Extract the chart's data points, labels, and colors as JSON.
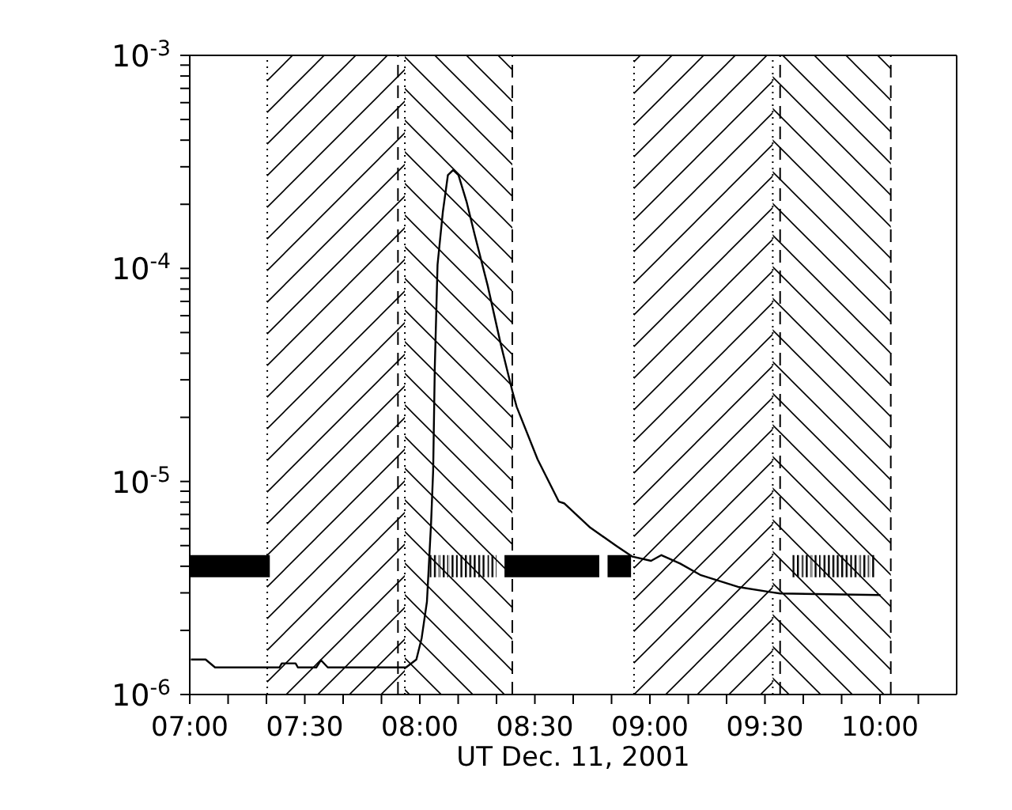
{
  "chart_data": {
    "type": "line",
    "xlabel": "UT Dec. 11, 2001",
    "xlim": [
      7,
      10.3333
    ],
    "xticks": [
      {
        "value": 7,
        "label": "07:00"
      },
      {
        "value": 7.1667,
        "label": null
      },
      {
        "value": 7.3333,
        "label": null
      },
      {
        "value": 7.5,
        "label": "07:30"
      },
      {
        "value": 7.6667,
        "label": null
      },
      {
        "value": 7.8333,
        "label": null
      },
      {
        "value": 8,
        "label": "08:00"
      },
      {
        "value": 8.1667,
        "label": null
      },
      {
        "value": 8.3333,
        "label": null
      },
      {
        "value": 8.5,
        "label": "08:30"
      },
      {
        "value": 8.6667,
        "label": null
      },
      {
        "value": 8.8333,
        "label": null
      },
      {
        "value": 9,
        "label": "09:00"
      },
      {
        "value": 9.1667,
        "label": null
      },
      {
        "value": 9.3333,
        "label": null
      },
      {
        "value": 9.5,
        "label": "09:30"
      },
      {
        "value": 9.6667,
        "label": null
      },
      {
        "value": 9.8333,
        "label": null
      },
      {
        "value": 10,
        "label": "10:00"
      },
      {
        "value": 10.1667,
        "label": null
      }
    ],
    "ylim": [
      1e-06,
      0.001
    ],
    "log": true,
    "yticks": [
      {
        "value": 1e-06,
        "label": "10$^{-6}$"
      },
      {
        "value": 2e-06,
        "label": null
      },
      {
        "value": 3e-06,
        "label": null
      },
      {
        "value": 4e-06,
        "label": null
      },
      {
        "value": 5e-06,
        "label": null
      },
      {
        "value": 6e-06,
        "label": null
      },
      {
        "value": 7e-06,
        "label": null
      },
      {
        "value": 8e-06,
        "label": null
      },
      {
        "value": 9e-06,
        "label": null
      },
      {
        "value": 1e-05,
        "label": "10$^{-5}$"
      },
      {
        "value": 2e-05,
        "label": null
      },
      {
        "value": 3e-05,
        "label": null
      },
      {
        "value": 4e-05,
        "label": null
      },
      {
        "value": 5e-05,
        "label": null
      },
      {
        "value": 6e-05,
        "label": null
      },
      {
        "value": 7e-05,
        "label": null
      },
      {
        "value": 8e-05,
        "label": null
      },
      {
        "value": 9e-05,
        "label": null
      },
      {
        "value": 0.0001,
        "label": "10$^{-4}$"
      },
      {
        "value": 0.0002,
        "label": null
      },
      {
        "value": 0.0003,
        "label": null
      },
      {
        "value": 0.0004,
        "label": null
      },
      {
        "value": 0.0005,
        "label": null
      },
      {
        "value": 0.0006,
        "label": null
      },
      {
        "value": 0.0007,
        "label": null
      },
      {
        "value": 0.0008,
        "label": null
      },
      {
        "value": 0.0009,
        "label": null
      },
      {
        "value": 0.001,
        "label": "10$^{-3}$"
      }
    ],
    "marker": "none",
    "series": [
      {
        "color": "#000000",
        "x": [
          7.005,
          7.069,
          7.11,
          7.39,
          7.4,
          7.46,
          7.47,
          7.55,
          7.57,
          7.6,
          7.94,
          7.985,
          8.008,
          8.031,
          8.049,
          8.058,
          8.065,
          8.077,
          8.1,
          8.122,
          8.145,
          8.168,
          8.203,
          8.237,
          8.295,
          8.352,
          8.402,
          8.421,
          8.512,
          8.604,
          8.627,
          8.741,
          8.856,
          8.924,
          9.005,
          9.05,
          9.131,
          9.222,
          9.383,
          9.521,
          9.566,
          10.002
        ],
        "values": [
          1.46e-06,
          1.46e-06,
          1.34e-06,
          1.34e-06,
          1.4e-06,
          1.4e-06,
          1.34e-06,
          1.34e-06,
          1.45e-06,
          1.34e-06,
          1.34e-06,
          1.46e-06,
          1.84e-06,
          2.73e-06,
          6.4e-06,
          1.13e-05,
          3.4e-05,
          0.000104,
          0.000184,
          0.000274,
          0.00029,
          0.000274,
          0.000206,
          0.000146,
          8.3e-05,
          4.4e-05,
          2.66e-05,
          2.24e-05,
          1.27e-05,
          8.05e-06,
          7.9e-06,
          6.07e-06,
          4.97e-06,
          4.44e-06,
          4.24e-06,
          4.51e-06,
          4.12e-06,
          3.63e-06,
          3.2e-06,
          3.03e-06,
          2.98e-06,
          2.93e-06
        ]
      },
      {
        "color": "#000000",
        "line_style": "solid",
        "x": [
          7.0,
          7.348,
          7.35,
          8.368,
          8.78,
          8.79,
          8.816,
          8.918
        ],
        "values": [
          4e-06,
          4e-06,
          null,
          4e-06,
          4e-06,
          null,
          4e-06,
          4e-06
        ]
      },
      {
        "color": "#000000",
        "line_style": "dotted",
        "x": [
          8.043,
          8.334,
          8.5,
          9.619,
          9.978
        ],
        "values": [
          4e-06,
          4e-06,
          null,
          4e-06,
          4e-06
        ]
      }
    ],
    "bands": [
      {
        "axis": "x",
        "from": 7.337,
        "to": 7.935,
        "color": "#000000"
      },
      {
        "axis": "x",
        "from": 7.935,
        "to": 8.402,
        "color": "#000000"
      },
      {
        "axis": "x",
        "from": 8.931,
        "to": 9.534,
        "color": "#000000"
      },
      {
        "axis": "x",
        "from": 9.534,
        "to": 10.047,
        "color": "#000000"
      }
    ],
    "ref_lines": [
      {
        "axis": "x",
        "value": 7.337,
        "line_style": "dotted",
        "color": "#000000"
      },
      {
        "axis": "x",
        "value": 7.905,
        "line_style": "dashed",
        "color": "#000000"
      },
      {
        "axis": "x",
        "value": 7.935,
        "line_style": "dotted",
        "color": "#000000"
      },
      {
        "axis": "x",
        "value": 8.402,
        "line_style": "dashed",
        "color": "#000000"
      },
      {
        "axis": "x",
        "value": 8.931,
        "line_style": "dotted",
        "color": "#000000"
      },
      {
        "axis": "x",
        "value": 9.534,
        "line_style": "dotted",
        "color": "#000000"
      },
      {
        "axis": "x",
        "value": 9.566,
        "line_style": "dashed",
        "color": "#000000"
      },
      {
        "axis": "x",
        "value": 10.047,
        "line_style": "dashed",
        "color": "#000000"
      }
    ]
  }
}
